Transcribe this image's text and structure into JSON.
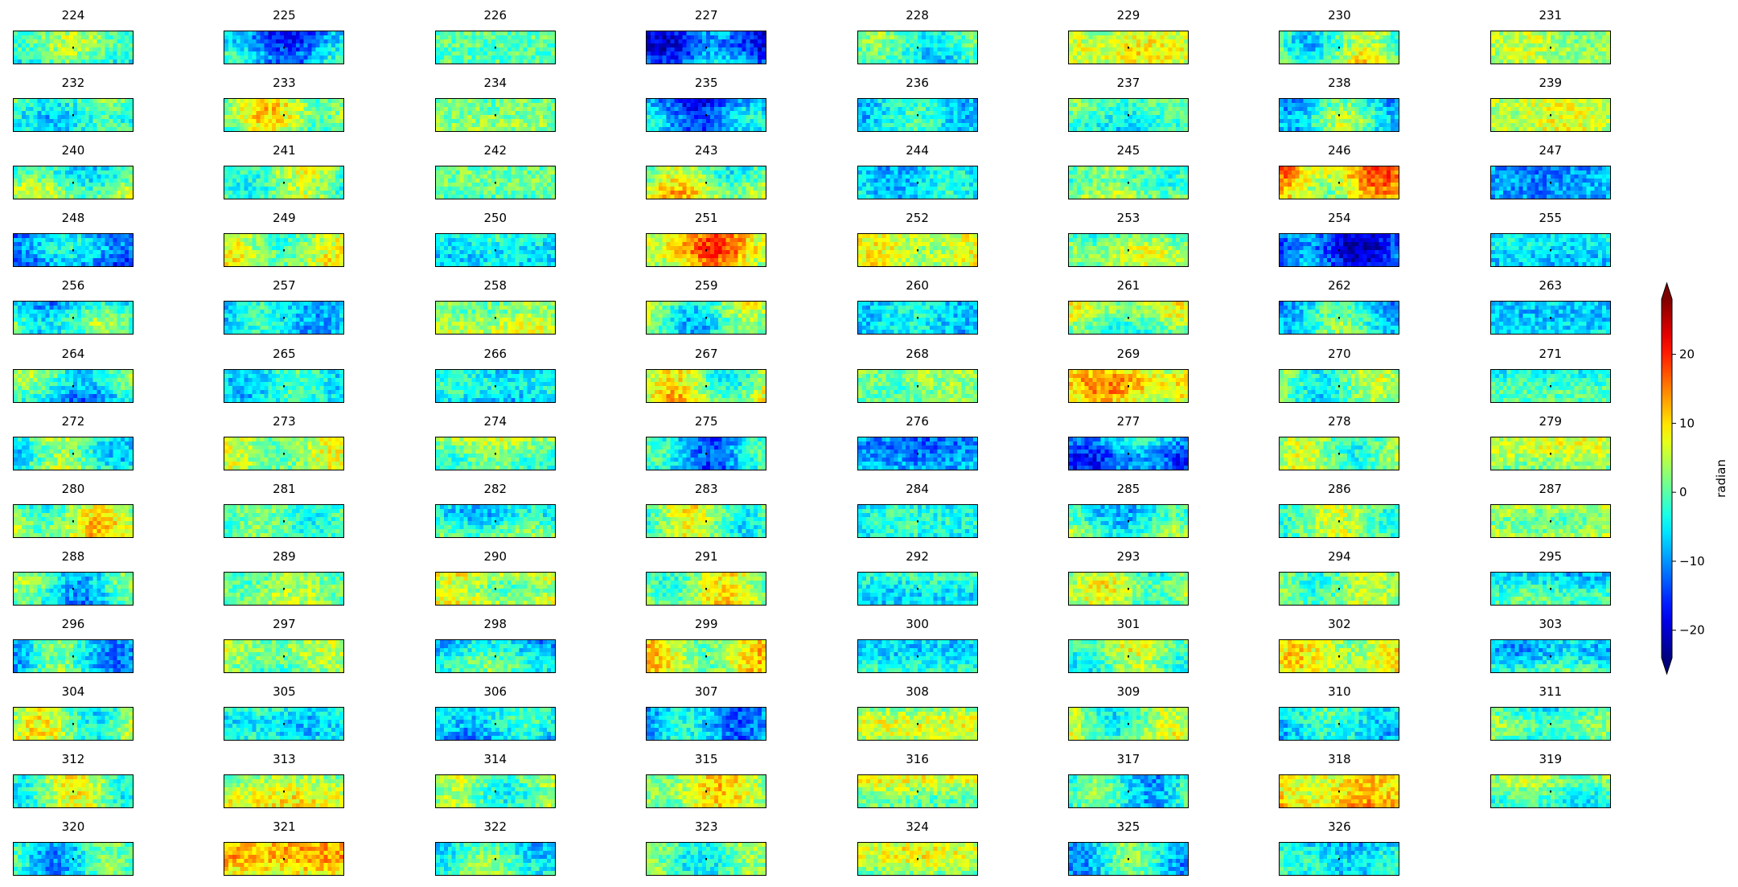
{
  "chart_data": {
    "type": "heatmap",
    "layout": {
      "rows": 13,
      "cols": 8
    },
    "panel_titles": [
      "224",
      "225",
      "226",
      "227",
      "228",
      "229",
      "230",
      "231",
      "232",
      "233",
      "234",
      "235",
      "236",
      "237",
      "238",
      "239",
      "240",
      "241",
      "242",
      "243",
      "244",
      "245",
      "246",
      "247",
      "248",
      "249",
      "250",
      "251",
      "252",
      "253",
      "254",
      "255",
      "256",
      "257",
      "258",
      "259",
      "260",
      "261",
      "262",
      "263",
      "264",
      "265",
      "266",
      "267",
      "268",
      "269",
      "270",
      "271",
      "272",
      "273",
      "274",
      "275",
      "276",
      "277",
      "278",
      "279",
      "280",
      "281",
      "282",
      "283",
      "284",
      "285",
      "286",
      "287",
      "288",
      "289",
      "290",
      "291",
      "292",
      "293",
      "294",
      "295",
      "296",
      "297",
      "298",
      "299",
      "300",
      "301",
      "302",
      "303",
      "304",
      "305",
      "306",
      "307",
      "308",
      "309",
      "310",
      "311",
      "312",
      "313",
      "314",
      "315",
      "316",
      "317",
      "318",
      "319",
      "320",
      "321",
      "322",
      "323",
      "324",
      "325",
      "326"
    ],
    "panel_mean_values": [
      0,
      -10,
      0,
      -12,
      -2,
      6,
      2,
      4,
      -2,
      4,
      2,
      -12,
      -4,
      -2,
      -4,
      6,
      0,
      2,
      0,
      4,
      -6,
      2,
      10,
      -10,
      -10,
      4,
      -4,
      10,
      6,
      2,
      -14,
      -6,
      -4,
      -6,
      4,
      0,
      -6,
      2,
      -4,
      -6,
      -4,
      -4,
      -6,
      4,
      2,
      8,
      0,
      -2,
      0,
      4,
      2,
      -8,
      -10,
      -10,
      2,
      4,
      4,
      0,
      -2,
      2,
      -4,
      -2,
      2,
      4,
      -4,
      2,
      6,
      4,
      -4,
      2,
      2,
      -4,
      -4,
      2,
      -4,
      6,
      -4,
      2,
      6,
      -4,
      2,
      -4,
      -6,
      -8,
      4,
      2,
      -4,
      -2,
      2,
      6,
      2,
      6,
      4,
      -4,
      10,
      0,
      -4,
      10,
      -2,
      0,
      4,
      -4,
      -6
    ],
    "colorbar": {
      "label": "radian",
      "ticks": [
        "20",
        "10",
        "0",
        "−10",
        "−20"
      ],
      "tick_values": [
        20,
        10,
        0,
        -10,
        -20
      ],
      "range": [
        -24,
        28
      ],
      "extend": "both",
      "colormap": "jet"
    }
  }
}
